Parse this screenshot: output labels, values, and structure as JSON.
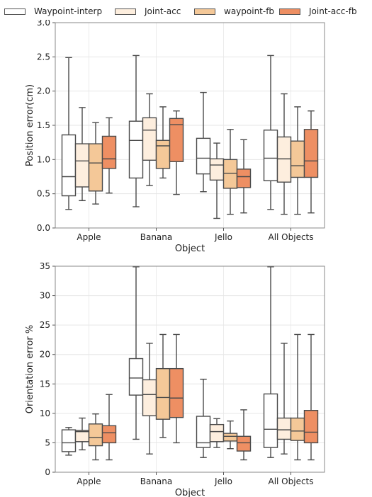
{
  "legend": {
    "items": [
      {
        "label": "Waypoint-interp",
        "color": "#ffffff"
      },
      {
        "label": "Joint-acc",
        "color": "#fdeede"
      },
      {
        "label": "waypoint-fb",
        "color": "#f4c898"
      },
      {
        "label": "Joint-acc-fb",
        "color": "#ee8f63"
      }
    ]
  },
  "chart_data": [
    {
      "type": "box",
      "title": "",
      "xlabel": "Object",
      "ylabel": "Position error(cm)",
      "categories": [
        "Apple",
        "Banana",
        "Jello",
        "All Objects"
      ],
      "ylim": [
        0.0,
        3.0
      ],
      "yticks": [
        "0.0",
        "0.5",
        "1.0",
        "1.5",
        "2.0",
        "2.5",
        "3.0"
      ],
      "grid": true,
      "series": [
        {
          "name": "Waypoint-interp",
          "boxes": [
            {
              "min": 0.27,
              "q1": 0.47,
              "median": 0.75,
              "q3": 1.36,
              "max": 2.49
            },
            {
              "min": 0.31,
              "q1": 0.73,
              "median": 1.28,
              "q3": 1.56,
              "max": 2.52
            },
            {
              "min": 0.53,
              "q1": 0.79,
              "median": 1.02,
              "q3": 1.31,
              "max": 1.98
            },
            {
              "min": 0.27,
              "q1": 0.69,
              "median": 1.02,
              "q3": 1.43,
              "max": 2.52
            }
          ]
        },
        {
          "name": "Joint-acc",
          "boxes": [
            {
              "min": 0.4,
              "q1": 0.6,
              "median": 0.98,
              "q3": 1.23,
              "max": 1.76
            },
            {
              "min": 0.62,
              "q1": 0.99,
              "median": 1.43,
              "q3": 1.61,
              "max": 1.96
            },
            {
              "min": 0.14,
              "q1": 0.7,
              "median": 0.92,
              "q3": 1.01,
              "max": 1.24
            },
            {
              "min": 0.2,
              "q1": 0.67,
              "median": 1.01,
              "q3": 1.33,
              "max": 1.96
            }
          ]
        },
        {
          "name": "waypoint-fb",
          "boxes": [
            {
              "min": 0.35,
              "q1": 0.54,
              "median": 0.95,
              "q3": 1.23,
              "max": 1.54
            },
            {
              "min": 0.73,
              "q1": 0.87,
              "median": 1.2,
              "q3": 1.28,
              "max": 1.77
            },
            {
              "min": 0.2,
              "q1": 0.58,
              "median": 0.8,
              "q3": 1.0,
              "max": 1.44
            },
            {
              "min": 0.2,
              "q1": 0.74,
              "median": 0.91,
              "q3": 1.27,
              "max": 1.77
            }
          ]
        },
        {
          "name": "Joint-acc-fb",
          "boxes": [
            {
              "min": 0.51,
              "q1": 0.87,
              "median": 1.01,
              "q3": 1.34,
              "max": 1.61
            },
            {
              "min": 0.49,
              "q1": 0.97,
              "median": 1.51,
              "q3": 1.6,
              "max": 1.71
            },
            {
              "min": 0.22,
              "q1": 0.59,
              "median": 0.75,
              "q3": 0.86,
              "max": 1.29
            },
            {
              "min": 0.22,
              "q1": 0.74,
              "median": 0.98,
              "q3": 1.44,
              "max": 1.71
            }
          ]
        }
      ]
    },
    {
      "type": "box",
      "title": "",
      "xlabel": "Object",
      "ylabel": "Orientation error %",
      "categories": [
        "Apple",
        "Banana",
        "Jello",
        "All Objects"
      ],
      "ylim": [
        0,
        35
      ],
      "yticks": [
        "0",
        "5",
        "10",
        "15",
        "20",
        "25",
        "30",
        "35"
      ],
      "grid": true,
      "series": [
        {
          "name": "Waypoint-interp",
          "boxes": [
            {
              "min": 2.9,
              "q1": 3.5,
              "median": 5.0,
              "q3": 7.2,
              "max": 7.6
            },
            {
              "min": 5.6,
              "q1": 13.1,
              "median": 16.0,
              "q3": 19.3,
              "max": 34.9
            },
            {
              "min": 2.5,
              "q1": 4.2,
              "median": 5.0,
              "q3": 9.5,
              "max": 15.8
            },
            {
              "min": 2.5,
              "q1": 4.2,
              "median": 7.3,
              "q3": 13.3,
              "max": 34.9
            }
          ]
        },
        {
          "name": "Joint-acc",
          "boxes": [
            {
              "min": 3.8,
              "q1": 5.2,
              "median": 6.9,
              "q3": 7.1,
              "max": 9.2
            },
            {
              "min": 3.1,
              "q1": 9.6,
              "median": 13.2,
              "q3": 15.7,
              "max": 21.9
            },
            {
              "min": 4.2,
              "q1": 5.2,
              "median": 6.9,
              "q3": 8.1,
              "max": 9.1
            },
            {
              "min": 3.1,
              "q1": 5.6,
              "median": 7.2,
              "q3": 9.2,
              "max": 21.9
            }
          ]
        },
        {
          "name": "waypoint-fb",
          "boxes": [
            {
              "min": 2.1,
              "q1": 4.5,
              "median": 5.9,
              "q3": 8.2,
              "max": 9.9
            },
            {
              "min": 5.9,
              "q1": 9.0,
              "median": 12.7,
              "q3": 17.6,
              "max": 23.4
            },
            {
              "min": 4.0,
              "q1": 5.3,
              "median": 6.1,
              "q3": 6.6,
              "max": 8.7
            },
            {
              "min": 2.1,
              "q1": 5.4,
              "median": 7.0,
              "q3": 9.2,
              "max": 23.4
            }
          ]
        },
        {
          "name": "Joint-acc-fb",
          "boxes": [
            {
              "min": 2.1,
              "q1": 5.0,
              "median": 6.7,
              "q3": 7.9,
              "max": 13.2
            },
            {
              "min": 5.0,
              "q1": 9.3,
              "median": 12.6,
              "q3": 17.6,
              "max": 23.4
            },
            {
              "min": 2.1,
              "q1": 3.6,
              "median": 5.0,
              "q3": 6.1,
              "max": 10.6
            },
            {
              "min": 2.1,
              "q1": 5.0,
              "median": 6.8,
              "q3": 10.5,
              "max": 23.4
            }
          ]
        }
      ]
    }
  ]
}
